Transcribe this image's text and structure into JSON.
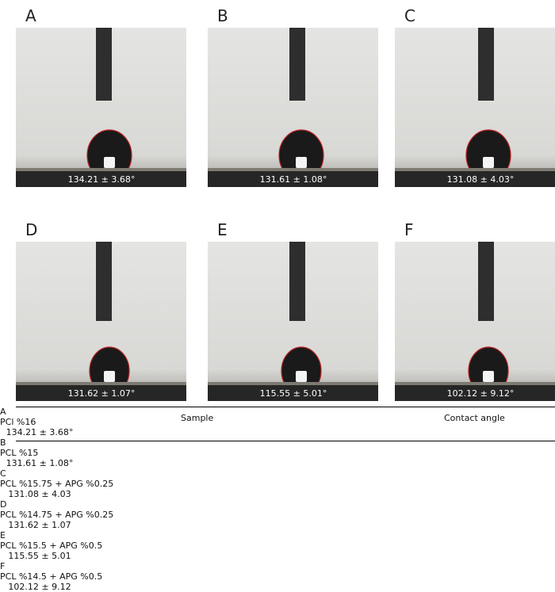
{
  "panels": [
    {
      "label": "A",
      "caption": "134.21 ± 3.68°"
    },
    {
      "label": "B",
      "caption": "131.61 ± 1.08°"
    },
    {
      "label": "C",
      "caption": "131.08 ± 4.03°"
    },
    {
      "label": "D",
      "caption": "131.62 ± 1.07°"
    },
    {
      "label": "E",
      "caption": "115.55 ± 5.01°"
    },
    {
      "label": "F",
      "caption": "102.12 ± 9.12°"
    }
  ],
  "table": {
    "headers": [
      "Sample",
      "Contact angle"
    ],
    "rows": [
      [
        "A",
        "PCl %16",
        "134.21 ± 3.68°"
      ],
      [
        "B",
        "PCL %15",
        "131.61 ± 1.08°"
      ],
      [
        "C",
        "PCL %15.75 + APG %0.25",
        "131.08 ± 4.03"
      ],
      [
        "D",
        "PCL %14.75 + APG %0.25",
        "131.62 ± 1.07"
      ],
      [
        "E",
        "PCL %15.5 + APG %0.5",
        "115.55 ± 5.01"
      ],
      [
        "F",
        "PCL %14.5 + APG %0.5",
        "102.12 ± 9.12"
      ]
    ]
  }
}
